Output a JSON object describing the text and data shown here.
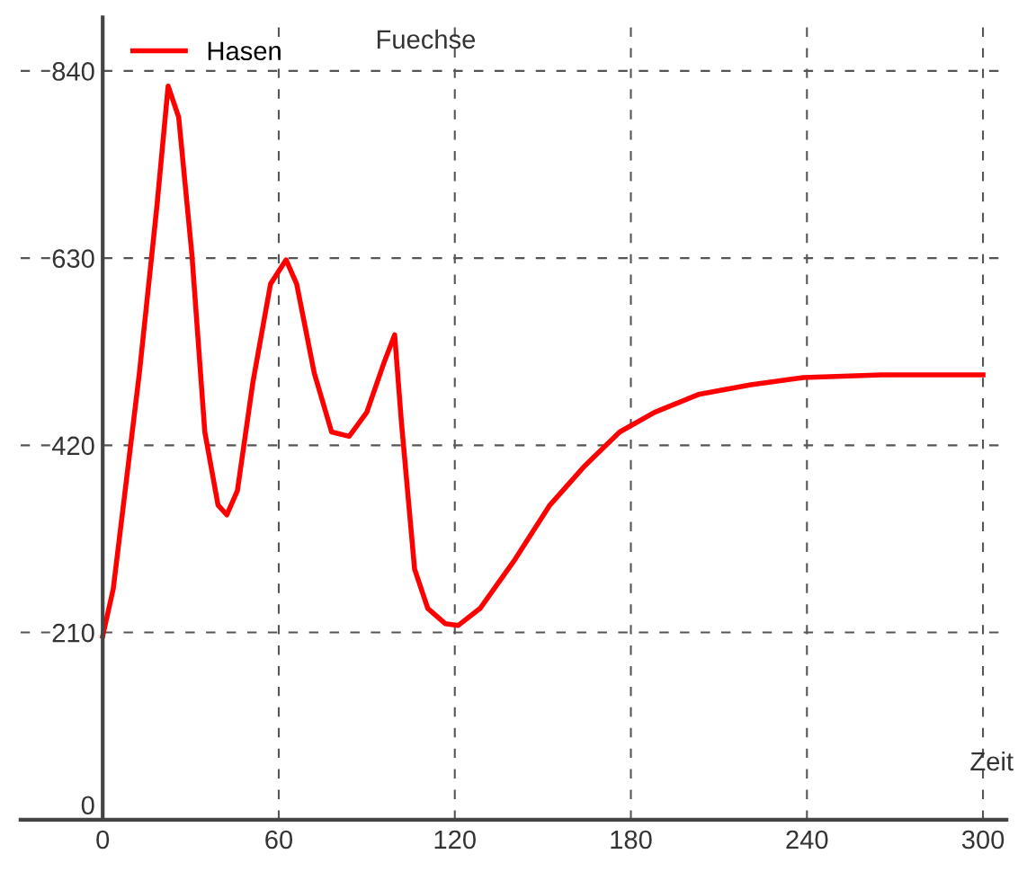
{
  "chart_data": {
    "type": "line",
    "xlabel": "Zeit",
    "x": [
      0,
      3.6,
      12.5,
      18.5,
      22.3,
      25.9,
      30.4,
      34.8,
      39.3,
      42.3,
      45.9,
      51.2,
      57.2,
      62.5,
      66.1,
      72.1,
      78.0,
      84.0,
      90.0,
      95.9,
      99.5,
      101.8,
      106.3,
      110.8,
      116.7,
      121.2,
      128.6,
      140.5,
      152.4,
      164.3,
      176.2,
      188.1,
      203.0,
      220.9,
      238.7,
      265.5,
      300
    ],
    "series": [
      {
        "name": "Hasen",
        "color": "#ff0000",
        "values": [
          206,
          259,
          501,
          689,
          823,
          788,
          634,
          435,
          353,
          342,
          369,
          491,
          601,
          628,
          601,
          501,
          435,
          430,
          457,
          513,
          544,
          446,
          281,
          237,
          220,
          218,
          237,
          292,
          353,
          397,
          435,
          457,
          477,
          488,
          496,
          499,
          499
        ]
      }
    ],
    "annotations": [
      "Fuechse"
    ],
    "xlim": [
      -28,
      308
    ],
    "ylim": [
      0,
      900
    ],
    "xticks": [
      0,
      60,
      120,
      180,
      240,
      300
    ],
    "yticks": [
      0,
      210,
      420,
      630,
      840
    ],
    "grid": true,
    "legend": "top left",
    "line_style": "solid",
    "marker": "none"
  }
}
